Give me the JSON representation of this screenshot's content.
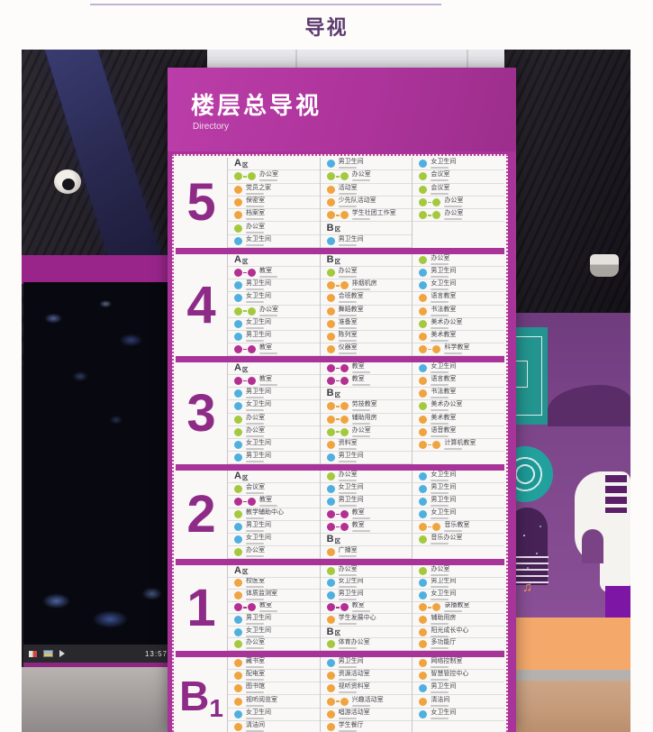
{
  "page_title": "导视",
  "sign": {
    "title": "楼层总导视",
    "subtitle": "Directory"
  },
  "taskbar": {
    "clock": "13:57"
  },
  "colors": {
    "sign_magenta": "#a83399",
    "floor_numeral": "#8e2b87",
    "badge": {
      "g": "#a4c93e",
      "o": "#f0a440",
      "b": "#4fb0e0",
      "m": "#b32f92"
    }
  },
  "floors": [
    {
      "num": "5",
      "num_sub": "",
      "cols": [
        [
          {
            "z": "A区"
          },
          {
            "b": [
              "g",
              "g"
            ],
            "n": "办公室"
          },
          {
            "b": [
              "o"
            ],
            "n": "党员之家"
          },
          {
            "b": [
              "o"
            ],
            "n": "保密室"
          },
          {
            "b": [
              "o"
            ],
            "n": "档案室"
          },
          {
            "b": [
              "g"
            ],
            "n": "办公室"
          },
          {
            "b": [
              "b"
            ],
            "n": "女卫生间"
          }
        ],
        [
          {
            "b": [
              "b"
            ],
            "n": "男卫生间"
          },
          {
            "b": [
              "g",
              "g"
            ],
            "n": "办公室"
          },
          {
            "b": [
              "o"
            ],
            "n": "活动室"
          },
          {
            "b": [
              "o"
            ],
            "n": "少先队活动室"
          },
          {
            "b": [
              "o",
              "o"
            ],
            "n": "学生社团工作室"
          },
          {
            "z": "B区"
          },
          {
            "b": [
              "b"
            ],
            "n": "男卫生间"
          }
        ],
        [
          {
            "b": [
              "b"
            ],
            "n": "女卫生间"
          },
          {
            "b": [
              "g"
            ],
            "n": "会议室"
          },
          {
            "b": [
              "g"
            ],
            "n": "会议室"
          },
          {
            "b": [
              "g",
              "g"
            ],
            "n": "办公室"
          },
          {
            "b": [
              "g",
              "g"
            ],
            "n": "办公室"
          }
        ]
      ]
    },
    {
      "num": "4",
      "num_sub": "",
      "cols": [
        [
          {
            "z": "A区"
          },
          {
            "b": [
              "m",
              "m"
            ],
            "n": "教室"
          },
          {
            "b": [
              "b"
            ],
            "n": "男卫生间"
          },
          {
            "b": [
              "b"
            ],
            "n": "女卫生间"
          },
          {
            "b": [
              "g",
              "g"
            ],
            "n": "办公室"
          },
          {
            "b": [
              "b"
            ],
            "n": "女卫生间"
          },
          {
            "b": [
              "b"
            ],
            "n": "男卫生间"
          },
          {
            "b": [
              "m",
              "m"
            ],
            "n": "教室"
          }
        ],
        [
          {
            "z": "B区"
          },
          {
            "b": [
              "g"
            ],
            "n": "办公室"
          },
          {
            "b": [
              "o",
              "o"
            ],
            "n": "排烟机房"
          },
          {
            "b": [
              "o"
            ],
            "n": "合班教室"
          },
          {
            "b": [
              "o"
            ],
            "n": "舞蹈教室"
          },
          {
            "b": [
              "o"
            ],
            "n": "准备室"
          },
          {
            "b": [
              "o"
            ],
            "n": "陈列室"
          },
          {
            "b": [
              "o"
            ],
            "n": "仪器室"
          }
        ],
        [
          {
            "b": [
              "g"
            ],
            "n": "办公室"
          },
          {
            "b": [
              "b"
            ],
            "n": "男卫生间"
          },
          {
            "b": [
              "b"
            ],
            "n": "女卫生间"
          },
          {
            "b": [
              "o"
            ],
            "n": "语言教室"
          },
          {
            "b": [
              "o"
            ],
            "n": "书法教室"
          },
          {
            "b": [
              "g"
            ],
            "n": "美术办公室"
          },
          {
            "b": [
              "o"
            ],
            "n": "美术教室"
          },
          {
            "b": [
              "o",
              "o"
            ],
            "n": "科学教室"
          }
        ]
      ]
    },
    {
      "num": "3",
      "num_sub": "",
      "cols": [
        [
          {
            "z": "A区"
          },
          {
            "b": [
              "m",
              "m"
            ],
            "n": "教室"
          },
          {
            "b": [
              "b"
            ],
            "n": "男卫生间"
          },
          {
            "b": [
              "b"
            ],
            "n": "女卫生间"
          },
          {
            "b": [
              "g"
            ],
            "n": "办公室"
          },
          {
            "b": [
              "g"
            ],
            "n": "办公室"
          },
          {
            "b": [
              "b"
            ],
            "n": "女卫生间"
          },
          {
            "b": [
              "b"
            ],
            "n": "男卫生间"
          }
        ],
        [
          {
            "b": [
              "m",
              "m"
            ],
            "n": "教室"
          },
          {
            "b": [
              "m",
              "m"
            ],
            "n": "教室"
          },
          {
            "z": "B区"
          },
          {
            "b": [
              "o",
              "o"
            ],
            "n": "劳技教室"
          },
          {
            "b": [
              "o",
              "o"
            ],
            "n": "辅助用房"
          },
          {
            "b": [
              "g",
              "g"
            ],
            "n": "办公室"
          },
          {
            "b": [
              "o"
            ],
            "n": "资料室"
          },
          {
            "b": [
              "b"
            ],
            "n": "男卫生间"
          }
        ],
        [
          {
            "b": [
              "b"
            ],
            "n": "女卫生间"
          },
          {
            "b": [
              "o"
            ],
            "n": "语言教室"
          },
          {
            "b": [
              "o"
            ],
            "n": "书法教室"
          },
          {
            "b": [
              "g"
            ],
            "n": "美术办公室"
          },
          {
            "b": [
              "o"
            ],
            "n": "美术教室"
          },
          {
            "b": [
              "o"
            ],
            "n": "语音教室"
          },
          {
            "b": [
              "o",
              "o"
            ],
            "n": "计算机教室"
          }
        ]
      ]
    },
    {
      "num": "2",
      "num_sub": "",
      "cols": [
        [
          {
            "z": "A区"
          },
          {
            "b": [
              "g"
            ],
            "n": "会议室"
          },
          {
            "b": [
              "m",
              "m"
            ],
            "n": "教室"
          },
          {
            "b": [
              "g"
            ],
            "n": "教学辅助中心"
          },
          {
            "b": [
              "b"
            ],
            "n": "男卫生间"
          },
          {
            "b": [
              "b"
            ],
            "n": "女卫生间"
          },
          {
            "b": [
              "g"
            ],
            "n": "办公室"
          }
        ],
        [
          {
            "b": [
              "g"
            ],
            "n": "办公室"
          },
          {
            "b": [
              "b"
            ],
            "n": "女卫生间"
          },
          {
            "b": [
              "b"
            ],
            "n": "男卫生间"
          },
          {
            "b": [
              "m",
              "m"
            ],
            "n": "教室"
          },
          {
            "b": [
              "m",
              "m"
            ],
            "n": "教室"
          },
          {
            "z": "B区"
          },
          {
            "b": [
              "o"
            ],
            "n": "广播室"
          }
        ],
        [
          {
            "b": [
              "b"
            ],
            "n": "女卫生间"
          },
          {
            "b": [
              "b"
            ],
            "n": "男卫生间"
          },
          {
            "b": [
              "b"
            ],
            "n": "男卫生间"
          },
          {
            "b": [
              "b"
            ],
            "n": "女卫生间"
          },
          {
            "b": [
              "o",
              "o"
            ],
            "n": "音乐教室"
          },
          {
            "b": [
              "g"
            ],
            "n": "音乐办公室"
          }
        ]
      ]
    },
    {
      "num": "1",
      "num_sub": "",
      "cols": [
        [
          {
            "z": "A区"
          },
          {
            "b": [
              "o"
            ],
            "n": "校医室"
          },
          {
            "b": [
              "o"
            ],
            "n": "体质监测室"
          },
          {
            "b": [
              "m",
              "m"
            ],
            "n": "教室"
          },
          {
            "b": [
              "b"
            ],
            "n": "男卫生间"
          },
          {
            "b": [
              "b"
            ],
            "n": "女卫生间"
          },
          {
            "b": [
              "g"
            ],
            "n": "办公室"
          }
        ],
        [
          {
            "b": [
              "g"
            ],
            "n": "办公室"
          },
          {
            "b": [
              "b"
            ],
            "n": "女卫生间"
          },
          {
            "b": [
              "b"
            ],
            "n": "男卫生间"
          },
          {
            "b": [
              "m",
              "m"
            ],
            "n": "教室"
          },
          {
            "b": [
              "o"
            ],
            "n": "学生发展中心"
          },
          {
            "z": "B区"
          },
          {
            "b": [
              "g"
            ],
            "n": "体育办公室"
          }
        ],
        [
          {
            "b": [
              "g"
            ],
            "n": "办公室"
          },
          {
            "b": [
              "b"
            ],
            "n": "男卫生间"
          },
          {
            "b": [
              "b"
            ],
            "n": "女卫生间"
          },
          {
            "b": [
              "o",
              "o"
            ],
            "n": "录播教室"
          },
          {
            "b": [
              "o"
            ],
            "n": "辅助用房"
          },
          {
            "b": [
              "o"
            ],
            "n": "阳光成长中心"
          },
          {
            "b": [
              "o"
            ],
            "n": "多功能厅"
          }
        ]
      ]
    },
    {
      "num": "B",
      "num_sub": "1",
      "cols": [
        [
          {
            "b": [
              "o"
            ],
            "n": "藏书室"
          },
          {
            "b": [
              "o"
            ],
            "n": "配电室"
          },
          {
            "b": [
              "o"
            ],
            "n": "图书馆"
          },
          {
            "b": [
              "o"
            ],
            "n": "视听阅览室"
          },
          {
            "b": [
              "b"
            ],
            "n": "女卫生间"
          },
          {
            "b": [
              "o"
            ],
            "n": "清洁间"
          }
        ],
        [
          {
            "b": [
              "b"
            ],
            "n": "男卫生间"
          },
          {
            "b": [
              "o"
            ],
            "n": "资源活动室"
          },
          {
            "b": [
              "o"
            ],
            "n": "视听资料室"
          },
          {
            "b": [
              "o",
              "o"
            ],
            "n": "兴趣活动室"
          },
          {
            "b": [
              "o"
            ],
            "n": "唱游活动室"
          },
          {
            "b": [
              "o"
            ],
            "n": "学生餐厅"
          }
        ],
        [
          {
            "b": [
              "o"
            ],
            "n": "网络控制室"
          },
          {
            "b": [
              "o"
            ],
            "n": "智慧管控中心"
          },
          {
            "b": [
              "b"
            ],
            "n": "男卫生间"
          },
          {
            "b": [
              "o"
            ],
            "n": "清洁间"
          },
          {
            "b": [
              "b"
            ],
            "n": "女卫生间"
          }
        ]
      ]
    }
  ]
}
